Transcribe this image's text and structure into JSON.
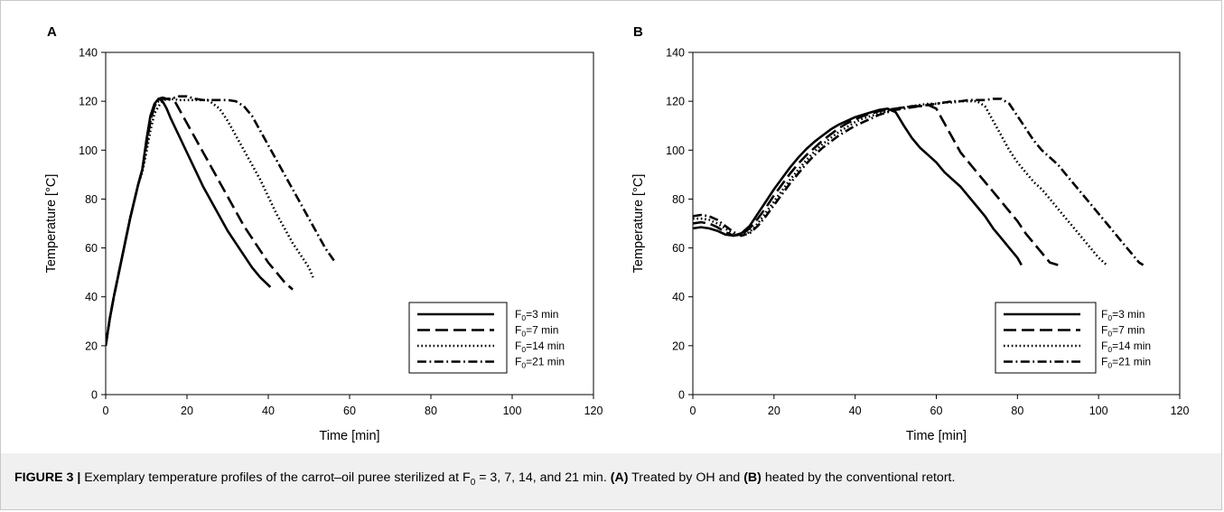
{
  "caption": {
    "figure_label": "FIGURE 3 |",
    "text_before_symbol": " Exemplary temperature profiles of the carrot–oil puree sterilized at ",
    "symbol_main": "F",
    "symbol_sub": "0",
    "text_after_symbol": " = 3, 7, 14, and 21 min. ",
    "panel_a_ref": "(A)",
    "panel_a_text": " Treated by OH and ",
    "panel_b_ref": "(B)",
    "panel_b_text": " heated by the conventional retort."
  },
  "chart_data": [
    {
      "panel_label": "A",
      "type": "line",
      "xlabel": "Time [min]",
      "ylabel": "Temperature [°C]",
      "xlim": [
        0,
        120
      ],
      "ylim": [
        0,
        140
      ],
      "xticks": [
        0,
        20,
        40,
        60,
        80,
        100,
        120
      ],
      "yticks": [
        0,
        20,
        40,
        60,
        80,
        100,
        120,
        140
      ],
      "grid": false,
      "legend_position": "bottom-right",
      "series": [
        {
          "name": "F0=3  min",
          "label_main": "F",
          "label_sub": "0",
          "label_rest": "=3  min",
          "style": "solid",
          "x": [
            0,
            1,
            2,
            3,
            4,
            5,
            6,
            7,
            8,
            9,
            10,
            11,
            12,
            13,
            14,
            15,
            16,
            18,
            20,
            22,
            24,
            26,
            28,
            30,
            32,
            34,
            36,
            38,
            40.5
          ],
          "y": [
            20,
            31,
            40,
            48,
            56,
            64,
            72,
            79,
            86,
            92,
            104,
            114,
            119,
            121,
            120,
            117,
            113,
            106,
            99,
            92,
            85,
            79,
            73,
            67,
            62,
            57,
            52,
            48,
            44
          ]
        },
        {
          "name": "F0=7  min",
          "label_main": "F",
          "label_sub": "0",
          "label_rest": "=7  min",
          "style": "dashed",
          "x": [
            0,
            1,
            2,
            3,
            4,
            5,
            6,
            7,
            8,
            9,
            10,
            11,
            12,
            13,
            14,
            15,
            16,
            17,
            18,
            20,
            22,
            24,
            26,
            28,
            30,
            32,
            34,
            36,
            38,
            40,
            42,
            44,
            46
          ],
          "y": [
            20,
            31,
            40,
            48,
            56,
            64,
            72,
            79,
            86,
            92,
            102,
            112,
            118,
            121,
            121.5,
            121,
            120.5,
            120,
            117,
            111,
            105,
            99,
            93,
            87,
            81,
            75,
            69,
            64,
            59,
            54,
            50,
            46,
            43
          ]
        },
        {
          "name": "F0=14  min",
          "label_main": "F",
          "label_sub": "0",
          "label_rest": "=14  min",
          "style": "dotted",
          "x": [
            0,
            1,
            2,
            3,
            4,
            5,
            6,
            7,
            8,
            9,
            10,
            11,
            12,
            13,
            14,
            15,
            16,
            18,
            20,
            22,
            24,
            25,
            26,
            28,
            30,
            32,
            34,
            36,
            38,
            40,
            42,
            44,
            46,
            48,
            50,
            51
          ],
          "y": [
            20,
            31,
            40,
            48,
            56,
            64,
            72,
            79,
            86,
            91,
            99,
            108,
            115,
            118,
            120,
            121,
            121,
            120.5,
            120.5,
            120.5,
            120.5,
            120.5,
            119.5,
            117,
            112,
            106,
            100,
            94,
            88,
            81,
            74,
            68,
            62,
            57,
            52,
            48
          ]
        },
        {
          "name": "F0=21  min",
          "label_main": "F",
          "label_sub": "0",
          "label_rest": "=21  min",
          "style": "dashdot",
          "x": [
            0,
            1,
            2,
            3,
            4,
            5,
            6,
            7,
            8,
            9,
            10,
            11,
            12,
            13,
            14,
            15,
            16,
            18,
            20,
            22,
            24,
            26,
            28,
            30,
            32,
            33,
            34,
            36,
            38,
            40,
            42,
            44,
            46,
            48,
            50,
            52,
            54,
            56.5
          ],
          "y": [
            20,
            31,
            40,
            48,
            56,
            64,
            72,
            79,
            86,
            92,
            102,
            112,
            118,
            120,
            121,
            121,
            121,
            122,
            122,
            121,
            120.5,
            120.5,
            120.5,
            120.5,
            120,
            119,
            118,
            114,
            108,
            102,
            96,
            90,
            84,
            78,
            72,
            66,
            60,
            54
          ]
        }
      ]
    },
    {
      "panel_label": "B",
      "type": "line",
      "xlabel": "Time [min]",
      "ylabel": "Temperature [°C]",
      "xlim": [
        0,
        120
      ],
      "ylim": [
        0,
        140
      ],
      "xticks": [
        0,
        20,
        40,
        60,
        80,
        100,
        120
      ],
      "yticks": [
        0,
        20,
        40,
        60,
        80,
        100,
        120,
        140
      ],
      "grid": false,
      "legend_position": "bottom-right",
      "series": [
        {
          "name": "F0=3  min",
          "label_main": "F",
          "label_sub": "0",
          "label_rest": "=3  min",
          "style": "solid",
          "x": [
            0,
            2,
            4,
            6,
            8,
            10,
            12,
            14,
            16,
            18,
            20,
            22,
            24,
            26,
            28,
            30,
            32,
            34,
            36,
            38,
            40,
            42,
            44,
            46,
            48,
            50,
            52,
            54,
            56,
            58,
            60,
            62,
            64,
            66,
            68,
            70,
            72,
            74,
            76,
            78,
            80,
            81
          ],
          "y": [
            68,
            68.5,
            68,
            67,
            65.5,
            65,
            66,
            69,
            74,
            79,
            84,
            88.5,
            93,
            97,
            100.5,
            103.5,
            106,
            108.5,
            110.5,
            112,
            113.5,
            114.5,
            115.5,
            116.5,
            117,
            115.5,
            110,
            105,
            101,
            98,
            95,
            91,
            88,
            85,
            81,
            77,
            73,
            68,
            64,
            60,
            56,
            53
          ]
        },
        {
          "name": "F0=7  min",
          "label_main": "F",
          "label_sub": "0",
          "label_rest": "=7  min",
          "style": "dashed",
          "x": [
            0,
            2,
            4,
            6,
            8,
            10,
            12,
            14,
            16,
            18,
            20,
            22,
            24,
            26,
            28,
            30,
            32,
            34,
            36,
            38,
            40,
            42,
            44,
            46,
            48,
            50,
            52,
            54,
            56,
            58,
            60,
            62,
            64,
            66,
            68,
            70,
            72,
            74,
            76,
            78,
            80,
            82,
            84,
            86,
            88,
            90
          ],
          "y": [
            70,
            70.5,
            70,
            68.5,
            66.5,
            65,
            65.5,
            68,
            72,
            76.5,
            81.5,
            86,
            90.5,
            94.5,
            98,
            101,
            104,
            106.5,
            109,
            111,
            112.5,
            114,
            115,
            116,
            116.5,
            117,
            117.5,
            118,
            118,
            118.5,
            117,
            111,
            105,
            99,
            95,
            91,
            87,
            83,
            79,
            75,
            71,
            66,
            62,
            58,
            54,
            53
          ]
        },
        {
          "name": "F0=14  min",
          "label_main": "F",
          "label_sub": "0",
          "label_rest": "=14  min",
          "style": "dotted",
          "x": [
            0,
            2,
            4,
            6,
            8,
            10,
            12,
            14,
            16,
            18,
            20,
            22,
            24,
            26,
            28,
            30,
            32,
            34,
            36,
            38,
            40,
            42,
            44,
            46,
            48,
            50,
            52,
            54,
            56,
            58,
            60,
            62,
            64,
            66,
            68,
            70,
            72,
            74,
            76,
            78,
            80,
            82,
            84,
            86,
            88,
            90,
            92,
            94,
            96,
            98,
            100,
            102
          ],
          "y": [
            72,
            72,
            71.5,
            70,
            68,
            65.5,
            65,
            66.5,
            70,
            74.5,
            79,
            83.5,
            88,
            92,
            96,
            99.5,
            102.5,
            105,
            107.5,
            109.5,
            111.5,
            113,
            114,
            115,
            116,
            117,
            117.5,
            118,
            118.5,
            119,
            119,
            119.5,
            119.5,
            120,
            120,
            120,
            118,
            112,
            106,
            100,
            95,
            91,
            87,
            84,
            80,
            76,
            72,
            68,
            64,
            60,
            56,
            53
          ]
        },
        {
          "name": "F0=21  min",
          "label_main": "F",
          "label_sub": "0",
          "label_rest": "=21  min",
          "style": "dashdot",
          "x": [
            0,
            2,
            4,
            6,
            8,
            10,
            12,
            14,
            16,
            18,
            20,
            22,
            24,
            26,
            28,
            30,
            32,
            34,
            36,
            38,
            40,
            42,
            44,
            46,
            48,
            50,
            52,
            54,
            56,
            58,
            60,
            62,
            64,
            66,
            68,
            70,
            72,
            74,
            76,
            78,
            80,
            82,
            84,
            86,
            88,
            90,
            92,
            94,
            96,
            98,
            100,
            102,
            104,
            106,
            108,
            110,
            111
          ],
          "y": [
            73,
            73.5,
            73,
            71.5,
            69,
            66.5,
            65,
            66,
            69,
            73,
            77.5,
            82,
            86.5,
            90.5,
            94.5,
            98,
            101,
            103.5,
            106,
            108,
            110,
            111.5,
            113,
            114.5,
            115.5,
            116.5,
            117,
            117.5,
            118,
            118.5,
            119,
            119.5,
            120,
            120,
            120.5,
            120.5,
            120.5,
            121,
            121,
            119,
            114,
            109,
            104,
            100,
            97,
            94,
            90,
            86,
            82,
            78,
            74,
            70,
            66,
            62,
            58,
            54,
            53
          ]
        }
      ]
    }
  ]
}
